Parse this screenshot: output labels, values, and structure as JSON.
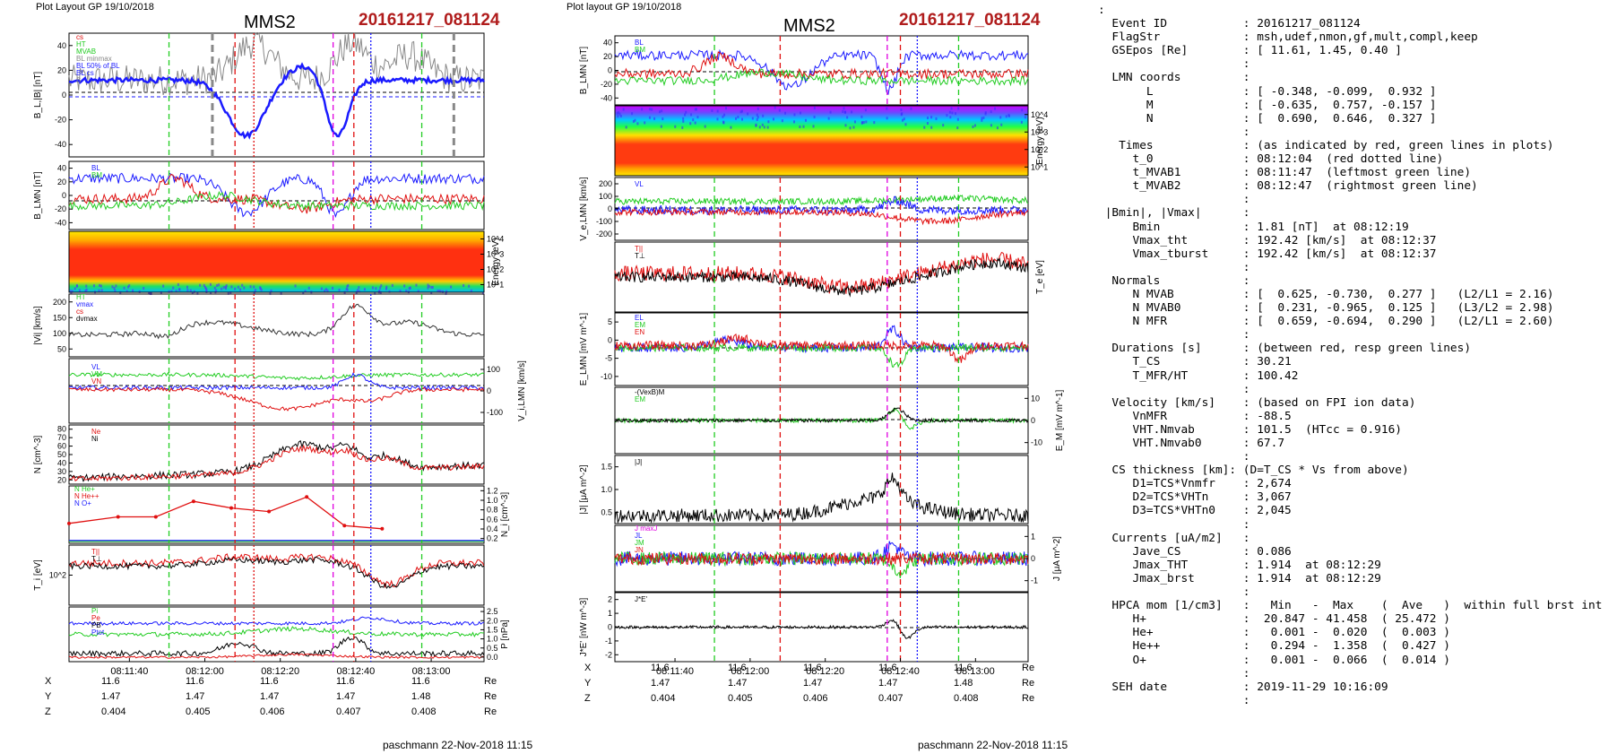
{
  "left_plot": {
    "layout_label": "Plot Layout GP 19/10/2018",
    "spacecraft": "MMS2",
    "event_label": "20161217_081124",
    "footer": "paschmann 22-Nov-2018 11:15"
  },
  "middle_plot": {
    "layout_label": "Plot layout GP 19/10/2018",
    "spacecraft": "MMS2",
    "event_label": "20161217_081124",
    "footer": "paschmann 22-Nov-2018 11:15"
  },
  "time_axis": {
    "tick_labels": [
      "08:11:40",
      "08:12:00",
      "08:12:20",
      "08:12:40",
      "08:13:00"
    ]
  },
  "position_table": {
    "rows": [
      {
        "label": "X",
        "values": [
          "11.6",
          "11.6",
          "11.6",
          "11.6",
          "11.6"
        ],
        "unit": "Re"
      },
      {
        "label": "Y",
        "values": [
          "1.47",
          "1.47",
          "1.47",
          "1.47",
          "1.48"
        ],
        "unit": "Re"
      },
      {
        "label": "Z",
        "values": [
          "0.404",
          "0.405",
          "0.406",
          "0.407",
          "0.408"
        ],
        "unit": "Re"
      }
    ]
  },
  "colors": {
    "blue": "#1a1aff",
    "red": "#e01010",
    "green": "#22cc22",
    "black": "#000000",
    "gray": "#888888",
    "magenta": "#e000e0",
    "title_red": "#b01c1c"
  },
  "chart_data": [
    {
      "type": "line",
      "title": "MMS2 20161217_081124",
      "panels": [
        {
          "id": "BL_absB",
          "ylabel": "B_L,|B| [nT]",
          "yticks": [
            "40",
            "20",
            "0",
            "-20",
            "-40"
          ],
          "legend": [
            "cs",
            "HT",
            "MVAB",
            "BL minmax",
            "BL 50% of BL",
            "BL cs",
            "B"
          ],
          "x_range": [
            "08:11:24",
            "08:13:14"
          ]
        },
        {
          "id": "B_LMN",
          "ylabel": "B_LMN [nT]",
          "yticks": [
            "40",
            "20",
            "0",
            "-20",
            "-40"
          ],
          "legend": [
            "BL",
            "BM",
            "BN"
          ]
        },
        {
          "id": "ion_spectrogram",
          "ylabel": "Energy (eV)",
          "yticks": [
            "10^4",
            "10^3",
            "10^2",
            "10^1"
          ],
          "type": "heatmap"
        },
        {
          "id": "Vi_mag",
          "ylabel": "|Vi| [km/s]",
          "yticks": [
            "200",
            "150",
            "100",
            "50"
          ],
          "legend": [
            "HT",
            "vmax",
            "cs",
            "dvmax"
          ]
        },
        {
          "id": "Vi_LMN",
          "ylabel": "V_i,LMN [km/s]",
          "yticks": [
            "100",
            "0",
            "-100"
          ],
          "legend": [
            "VL",
            "VM",
            "VN"
          ]
        },
        {
          "id": "N",
          "ylabel": "N [cm^-3]",
          "yticks": [
            "80",
            "70",
            "60",
            "50",
            "40",
            "30",
            "20"
          ],
          "legend": [
            "Ne",
            "Ni"
          ]
        },
        {
          "id": "Ni_hpca",
          "ylabel": "N_i [cm^-3]",
          "yticks": [
            "1.2",
            "1.0",
            "0.8",
            "0.6",
            "0.4",
            "0.2"
          ],
          "legend": [
            "N He+",
            "N He++",
            "N O+"
          ],
          "series": [
            {
              "name": "N He++",
              "x": [
                "08:11:24",
                "08:11:37",
                "08:11:47",
                "08:11:57",
                "08:12:07",
                "08:12:17",
                "08:12:27",
                "08:12:37",
                "08:12:47"
              ],
              "values": [
                0.45,
                0.6,
                0.6,
                0.95,
                0.8,
                0.72,
                1.05,
                0.4,
                0.33
              ]
            }
          ]
        },
        {
          "id": "Ti",
          "ylabel": "T_i [eV]",
          "yticks": [
            "10^2"
          ],
          "legend": [
            "T||",
            "T⊥"
          ]
        },
        {
          "id": "P",
          "ylabel": "P [nPa]",
          "yticks": [
            "2.5",
            "2.0",
            "1.5",
            "1.0",
            "0.5",
            "0.0"
          ],
          "legend": [
            "Pi",
            "Pe",
            "PB",
            "Ptot"
          ]
        }
      ]
    },
    {
      "type": "line",
      "title": "MMS2 20161217_081124",
      "panels": [
        {
          "id": "B_LMN",
          "ylabel": "B_LMN [nT]",
          "yticks": [
            "40",
            "20",
            "0",
            "-20",
            "-40"
          ],
          "legend": [
            "BL",
            "BM",
            "BN"
          ]
        },
        {
          "id": "electron_spectrogram",
          "ylabel": "Energy (eV)",
          "yticks": [
            "10^4",
            "10^3",
            "10^2",
            "10^1"
          ],
          "type": "heatmap"
        },
        {
          "id": "Ve_LMN",
          "ylabel": "V_e,LMN [km/s]",
          "yticks": [
            "200",
            "100",
            "0",
            "-100",
            "-200"
          ],
          "legend": [
            "VL",
            "VM",
            "VN"
          ]
        },
        {
          "id": "Te",
          "ylabel": "T_e [eV]",
          "legend": [
            "T||",
            "T⊥"
          ]
        },
        {
          "id": "E_LMN",
          "ylabel": "E_LMN [mV m^-1]",
          "yticks": [
            "5",
            "0",
            "-5",
            "-10"
          ],
          "legend": [
            "EL",
            "EM",
            "EN"
          ]
        },
        {
          "id": "EM",
          "ylabel": "E_M [mV m^-1]",
          "yticks": [
            "10",
            "0",
            "-10"
          ],
          "legend": [
            "-(VexB)M",
            "EM"
          ]
        },
        {
          "id": "J_mag",
          "ylabel": "|J| [μA m^-2]",
          "yticks": [
            "1.5",
            "1.0",
            "0.5"
          ],
          "legend": [
            "|J|"
          ]
        },
        {
          "id": "J",
          "ylabel": "J [μA m^-2]",
          "yticks": [
            "1",
            "0",
            "-1"
          ],
          "legend": [
            "J maxJ",
            "JL",
            "JM",
            "JN"
          ]
        },
        {
          "id": "JE",
          "ylabel": "J*E' [nW m^-3]",
          "yticks": [
            "2",
            "1",
            "0",
            "-1",
            "-2"
          ],
          "legend": [
            "J*E'"
          ]
        }
      ]
    }
  ],
  "info_panel": {
    "lines": [
      ":",
      "  Event ID           : 20161217_081124",
      "  FlagStr            : msh,udef,nmon,gf,mult,compl,keep",
      "  GSEpos [Re]        : [ 11.61, 1.45, 0.40 ]",
      "                     :",
      "  LMN coords         :",
      "       L             : [ -0.348, -0.099,  0.932 ]",
      "       M             : [ -0.635,  0.757, -0.157 ]",
      "       N             : [  0.690,  0.646,  0.327 ]",
      "                     :",
      "   Times             : (as indicated by red, green lines in plots)",
      "     t_0             : 08:12:04  (red dotted line)",
      "     t_MVAB1         : 08:11:47  (leftmost green line)",
      "     t_MVAB2         : 08:12:47  (rightmost green line)",
      "                     :",
      " |Bmin|, |Vmax|      :",
      "     Bmin            : 1.81 [nT]  at 08:12:19",
      "     Vmax_tht        : 192.42 [km/s]  at 08:12:37",
      "     Vmax_tburst     : 192.42 [km/s]  at 08:12:37",
      "                     :",
      "  Normals            :",
      "     N MVAB          : [  0.625, -0.730,  0.277 ]   (L2/L1 = 2.16)",
      "     N MVAB0         : [  0.231, -0.965,  0.125 ]   (L3/L2 = 2.98)",
      "     N MFR           : [  0.659, -0.694,  0.290 ]   (L2/L1 = 2.60)",
      "                     :",
      "  Durations [s]      : (between red, resp green lines)",
      "     T_CS            : 30.21",
      "     T_MFR/HT        : 100.42",
      "                     :",
      "  Velocity [km/s]    : (based on FPI ion data)",
      "     VnMFR           : -88.5",
      "     VHT.Nmvab       : 101.5  (HTcc = 0.916)",
      "     VHT.Nmvab0      : 67.7",
      "                     :",
      "  CS thickness [km]: (D=T_CS * Vs from above)",
      "     D1=TCS*Vnmfr    : 2,674",
      "     D2=TCS*VHTn     : 3,067",
      "     D3=TCS*VHTn0    : 2,045",
      "                     :",
      "  Currents [uA/m2]   :",
      "     Jave_CS         : 0.086",
      "     Jmax_THT        : 1.914  at 08:12:29",
      "     Jmax_brst       : 1.914  at 08:12:29",
      "                     :",
      "  HPCA mom [1/cm3]   :   Min   -  Max    (  Ave   )  within full brst int",
      "     H+              :  20.847 - 41.458  ( 25.472 )",
      "     He+             :   0.001 -  0.020  (  0.003 )",
      "     He++            :   0.294 -  1.358  (  0.427 )",
      "     O+              :   0.001 -  0.066  (  0.014 )",
      "                     :",
      "  SEH date           : 2019-11-29 10:16:09",
      "                     :"
    ]
  }
}
